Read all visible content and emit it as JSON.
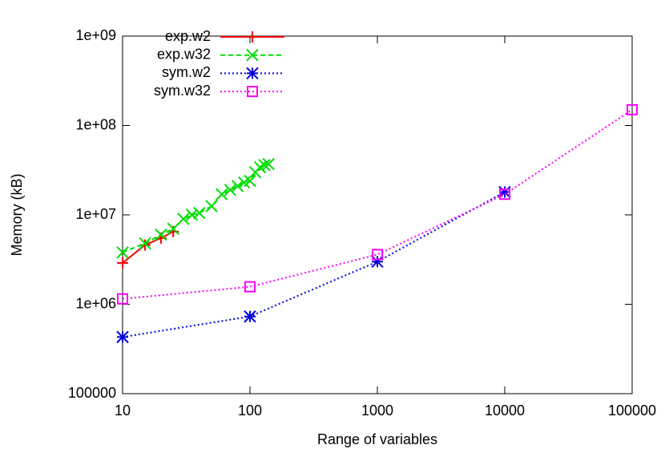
{
  "chart_data": {
    "type": "line",
    "log_x": true,
    "log_y": true,
    "x_label": "Range of variables",
    "y_label": "Memory (kB)",
    "xlim": [
      10,
      100000
    ],
    "xticks": [
      10,
      100,
      1000,
      10000,
      100000
    ],
    "ylim": [
      100000,
      1000000000
    ],
    "yticks": [
      100000,
      {
        "value": 1000000,
        "label": "1e+06"
      },
      {
        "value": 10000000,
        "label": "1e+07"
      },
      {
        "value": 100000000,
        "label": "1e+08"
      },
      {
        "value": 1000000000,
        "label": "1e+09"
      }
    ],
    "legend": "top-left",
    "series": [
      {
        "name": "exp.w2",
        "color": "#ff0000",
        "line_style": "solid",
        "marker": "plus",
        "x": [
          10,
          15,
          20,
          25
        ],
        "values": [
          2900000,
          4600000,
          5500000,
          6500000
        ]
      },
      {
        "name": "exp.w32",
        "color": "#00dd00",
        "line_style": "dashed",
        "marker": "cross",
        "x": [
          10,
          15,
          20,
          25,
          30,
          35,
          40,
          50,
          60,
          70,
          80,
          90,
          100,
          110,
          120,
          130,
          140
        ],
        "values": [
          3800000,
          4800000,
          6000000,
          7000000,
          9000000,
          10000000,
          10500000,
          12500000,
          17000000,
          19000000,
          21000000,
          23000000,
          24000000,
          30000000,
          34000000,
          36000000,
          37000000
        ]
      },
      {
        "name": "sym.w2",
        "color": "#0000dd",
        "line_style": "dotted",
        "marker": "star",
        "x": [
          10,
          100,
          1000,
          10000
        ],
        "values": [
          430000,
          730000,
          3000000,
          18000000
        ]
      },
      {
        "name": "sym.w32",
        "color": "#ff00ff",
        "line_style": "dotted",
        "marker": "square",
        "x": [
          10,
          100,
          1000,
          10000,
          100000
        ],
        "values": [
          1150000,
          1570000,
          3600000,
          17000000,
          150000000
        ]
      }
    ]
  }
}
